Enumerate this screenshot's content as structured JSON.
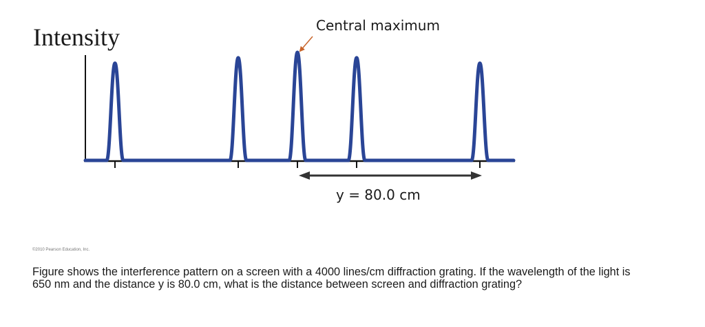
{
  "diagram": {
    "y_axis_label": "Intensity",
    "annotation": "Central maximum",
    "distance_label": "y = 80.0 cm",
    "credit": "©2010 Pearson Education, Inc.",
    "colors": {
      "curve": "#2a4596",
      "axis": "#111111",
      "arrow": "#333333",
      "annotation_arrow": "#c8642a"
    }
  },
  "chart_data": {
    "type": "line",
    "title": "",
    "xlabel": "",
    "ylabel": "Intensity",
    "peaks": [
      {
        "name": "peak-1",
        "relative_height": 0.9
      },
      {
        "name": "peak-2",
        "relative_height": 0.95
      },
      {
        "name": "central-maximum",
        "relative_height": 1.0
      },
      {
        "name": "peak-4",
        "relative_height": 0.95
      },
      {
        "name": "peak-5",
        "relative_height": 0.9
      }
    ],
    "annotations": [
      "Central maximum",
      "y = 80.0 cm"
    ]
  },
  "question": {
    "text": "Figure shows the interference pattern on a screen with a 4000 lines/cm diffraction grating. If the wavelength of the light is 650 nm and the distance y is 80.0 cm, what is the distance between screen and diffraction grating?"
  }
}
